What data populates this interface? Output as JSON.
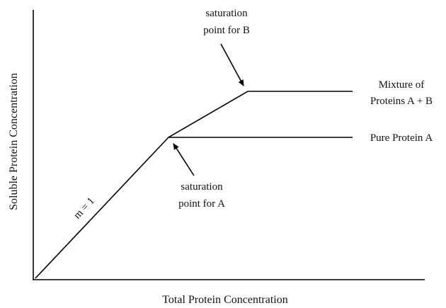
{
  "axes": {
    "x_label": "Total Protein Concentration",
    "y_label": "Soluble Protein Concentration"
  },
  "annotations": {
    "slope": "m = 1",
    "saturation_b": [
      "saturation",
      "point for B"
    ],
    "saturation_a": [
      "saturation",
      "point for A"
    ],
    "mixture": [
      "Mixture of",
      "Proteins A + B"
    ],
    "pure": "Pure Protein A"
  }
}
